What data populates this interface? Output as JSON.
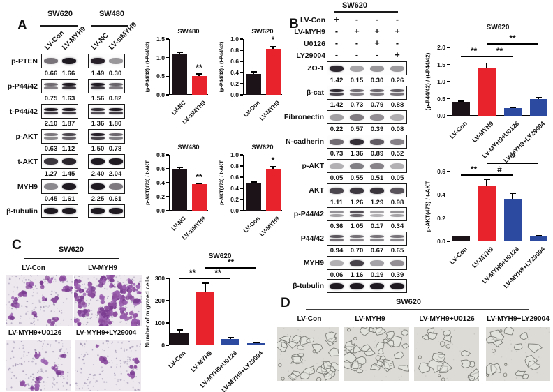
{
  "panel_a": {
    "label": "A",
    "groups": [
      {
        "cell_line": "SW620",
        "lanes": [
          "LV-Con",
          "LV-MYH9"
        ]
      },
      {
        "cell_line": "SW480",
        "lanes": [
          "LV-NC",
          "LV-siMYH9"
        ]
      }
    ],
    "blots": [
      {
        "protein": "p-PTEN",
        "values": [
          "0.66",
          "1.66",
          "1.49",
          "0.30"
        ]
      },
      {
        "protein": "p-P44/42",
        "values": [
          "0.75",
          "1.63",
          "1.56",
          "0.82"
        ]
      },
      {
        "protein": "t-P44/42",
        "values": [
          "2.10",
          "1.87",
          "1.36",
          "1.80"
        ]
      },
      {
        "protein": "p-AKT",
        "values": [
          "0.63",
          "1.12",
          "1.50",
          "0.78"
        ]
      },
      {
        "protein": "t-AKT",
        "values": [
          "1.27",
          "1.45",
          "2.40",
          "2.04"
        ]
      },
      {
        "protein": "MYH9",
        "values": [
          "0.45",
          "1.61",
          "2.25",
          "0.61"
        ]
      },
      {
        "protein": "β-tubulin",
        "values": []
      }
    ]
  },
  "panel_b": {
    "label": "B",
    "cell_line": "SW620",
    "conditions": [
      {
        "name": "LV-Con",
        "marks": [
          "+",
          "-",
          "-",
          "-"
        ]
      },
      {
        "name": "LV-MYH9",
        "marks": [
          "-",
          "+",
          "+",
          "+"
        ]
      },
      {
        "name": "U0126",
        "marks": [
          "-",
          "-",
          "+",
          "-"
        ]
      },
      {
        "name": "LY29004",
        "marks": [
          "-",
          "-",
          "-",
          "+"
        ]
      }
    ],
    "blots": [
      {
        "protein": "ZO-1",
        "values": [
          "1.42",
          "0.15",
          "0.30",
          "0.26"
        ]
      },
      {
        "protein": "β-cat",
        "values": [
          "1.42",
          "0.73",
          "0.79",
          "0.88"
        ]
      },
      {
        "protein": "Fibronectin",
        "values": [
          "0.22",
          "0.57",
          "0.39",
          "0.08"
        ]
      },
      {
        "protein": "N-cadherin",
        "values": [
          "0.73",
          "1.36",
          "0.89",
          "0.52"
        ]
      },
      {
        "protein": "p-AKT",
        "values": [
          "0.05",
          "0.55",
          "0.51",
          "0.05"
        ]
      },
      {
        "protein": "AKT",
        "values": [
          "1.11",
          "1.26",
          "1.29",
          "0.98"
        ]
      },
      {
        "protein": "p-P44/42",
        "values": [
          "0.36",
          "1.05",
          "0.17",
          "0.34"
        ]
      },
      {
        "protein": "P44/42",
        "values": [
          "0.94",
          "0.70",
          "0.67",
          "0.65"
        ]
      },
      {
        "protein": "MYH9",
        "values": [
          "0.06",
          "1.16",
          "0.19",
          "0.39"
        ]
      },
      {
        "protein": "β-tubulin",
        "values": []
      }
    ]
  },
  "panel_c": {
    "label": "C",
    "cell_line": "SW620",
    "images": [
      {
        "label": "LV-Con",
        "density": "medium"
      },
      {
        "label": "LV-MYH9",
        "density": "high"
      },
      {
        "label": "LV-MYH9+U0126",
        "density": "low"
      },
      {
        "label": "LV-MYH9+LY29004",
        "density": "sparse"
      }
    ]
  },
  "panel_d": {
    "label": "D",
    "cell_line": "SW620",
    "images": [
      {
        "label": "LV-Con"
      },
      {
        "label": "LV-MYH9"
      },
      {
        "label": "LV-MYH9+U0126"
      },
      {
        "label": "LV-MYH9+LY29004"
      }
    ]
  },
  "colors": {
    "black": "#1b1317",
    "red": "#e8232b",
    "blue": "#2c4aa0"
  },
  "chart_data": [
    {
      "id": "a1",
      "panel": "A",
      "type": "bar",
      "title": "SW480",
      "ylabel": "(p-P44/42) / (t-P44/42)",
      "categories": [
        "LV-NC",
        "LV-siMYH9"
      ],
      "values": [
        1.1,
        0.5
      ],
      "errors": [
        0.04,
        0.06
      ],
      "colors": [
        "black",
        "red"
      ],
      "ylim": [
        0,
        1.5
      ],
      "yticks": [
        0,
        0.5,
        1,
        1.5
      ],
      "ytick_labels": [
        "0.0",
        "0.5",
        "1.0",
        "1.5"
      ],
      "sig": [
        {
          "kind": "star",
          "bar": 1,
          "text": "**"
        }
      ]
    },
    {
      "id": "a2",
      "panel": "A",
      "type": "bar",
      "title": "SW620",
      "ylabel": "(p-P44/42) / (t-P44/42)",
      "categories": [
        "LV-Con",
        "LV-MYH9"
      ],
      "values": [
        0.38,
        0.83
      ],
      "errors": [
        0.03,
        0.04
      ],
      "colors": [
        "black",
        "red"
      ],
      "ylim": [
        0,
        1
      ],
      "yticks": [
        0,
        0.2,
        0.4,
        0.6,
        0.8,
        1
      ],
      "ytick_labels": [
        "0.0",
        "0.2",
        "0.4",
        "0.6",
        "0.8",
        "1.0"
      ],
      "sig": [
        {
          "kind": "star",
          "bar": 1,
          "text": "*"
        }
      ]
    },
    {
      "id": "a3",
      "panel": "A",
      "type": "bar",
      "title": "SW480",
      "ylabel": "p-AKT(473) / t-AKT",
      "categories": [
        "LV-NC",
        "LV-siMYH9"
      ],
      "values": [
        0.6,
        0.38
      ],
      "errors": [
        0.02,
        0.012
      ],
      "colors": [
        "black",
        "red"
      ],
      "ylim": [
        0,
        0.8
      ],
      "yticks": [
        0,
        0.2,
        0.4,
        0.6,
        0.8
      ],
      "ytick_labels": [
        "0.0",
        "0.2",
        "0.4",
        "0.6",
        "0.8"
      ],
      "sig": [
        {
          "kind": "star",
          "bar": 1,
          "text": "**"
        }
      ]
    },
    {
      "id": "a4",
      "panel": "A",
      "type": "bar",
      "title": "SW620",
      "ylabel": "p-AKT(473) / t-AKT",
      "categories": [
        "LV-Con",
        "LV-MYH9"
      ],
      "values": [
        0.5,
        0.74
      ],
      "errors": [
        0.015,
        0.045
      ],
      "colors": [
        "black",
        "red"
      ],
      "ylim": [
        0,
        1
      ],
      "yticks": [
        0,
        0.2,
        0.4,
        0.6,
        0.8,
        1
      ],
      "ytick_labels": [
        "0.0",
        "0.2",
        "0.4",
        "0.6",
        "0.8",
        "1.0"
      ],
      "sig": [
        {
          "kind": "star",
          "bar": 1,
          "text": "*"
        }
      ]
    },
    {
      "id": "b1",
      "panel": "B",
      "type": "bar",
      "title": "SW620",
      "ylabel": "(p-P44/42) / (t-P44/42)",
      "categories": [
        "LV-Con",
        "LV-MYH9",
        "LV-MYH9+U0126",
        "LV-MYH9+LY29004"
      ],
      "values": [
        0.4,
        1.4,
        0.22,
        0.48
      ],
      "errors": [
        0.03,
        0.14,
        0.03,
        0.05
      ],
      "colors": [
        "black",
        "red",
        "blue",
        "blue"
      ],
      "ylim": [
        0,
        2
      ],
      "yticks": [
        0,
        0.5,
        1,
        1.5,
        2
      ],
      "ytick_labels": [
        "0.0",
        "0.5",
        "1.0",
        "1.5",
        "2.0"
      ],
      "sig": [
        {
          "kind": "bracket",
          "from": 0,
          "to": 1,
          "text": "**",
          "level": 0
        },
        {
          "kind": "bracket",
          "from": 1,
          "to": 2,
          "text": "**",
          "level": 0
        },
        {
          "kind": "bracket",
          "from": 1,
          "to": 3,
          "text": "**",
          "level": 1
        }
      ]
    },
    {
      "id": "b2",
      "panel": "B",
      "type": "bar",
      "title": "",
      "ylabel": "p-AKT(473) / t-AKT",
      "categories": [
        "LV-Con",
        "LV-MYH9",
        "LV-MYH9+U0126",
        "LV-MYH9+LY29004"
      ],
      "values": [
        0.04,
        0.48,
        0.36,
        0.045
      ],
      "errors": [
        0.006,
        0.055,
        0.055,
        0.007
      ],
      "colors": [
        "black",
        "red",
        "blue",
        "blue"
      ],
      "ylim": [
        0,
        0.6
      ],
      "yticks": [
        0,
        0.2,
        0.4,
        0.6
      ],
      "ytick_labels": [
        "0.0",
        "0.2",
        "0.4",
        "0.6"
      ],
      "sig": [
        {
          "kind": "bracket",
          "from": 0,
          "to": 1,
          "text": "**",
          "level": 0
        },
        {
          "kind": "bracket",
          "from": 1,
          "to": 2,
          "text": "#",
          "level": 0
        },
        {
          "kind": "bracket",
          "from": 1,
          "to": 3,
          "text": "**",
          "level": 1
        }
      ]
    },
    {
      "id": "c1",
      "panel": "C",
      "type": "bar",
      "title": "SW620",
      "ylabel": "Number of migrated cells",
      "categories": [
        "LV-Con",
        "LV-MYH9",
        "LV-MYH9+U0126",
        "LV-MYH9+LY29004"
      ],
      "values": [
        55,
        240,
        28,
        8
      ],
      "errors": [
        13,
        38,
        6,
        4
      ],
      "colors": [
        "black",
        "red",
        "blue",
        "blue"
      ],
      "ylim": [
        0,
        300
      ],
      "yticks": [
        0,
        100,
        200,
        300
      ],
      "ytick_labels": [
        "0",
        "100",
        "200",
        "300"
      ],
      "sig": [
        {
          "kind": "bracket",
          "from": 0,
          "to": 1,
          "text": "**",
          "level": 0
        },
        {
          "kind": "bracket",
          "from": 1,
          "to": 2,
          "text": "**",
          "level": 0
        },
        {
          "kind": "bracket",
          "from": 1,
          "to": 3,
          "text": "**",
          "level": 1
        }
      ]
    }
  ]
}
